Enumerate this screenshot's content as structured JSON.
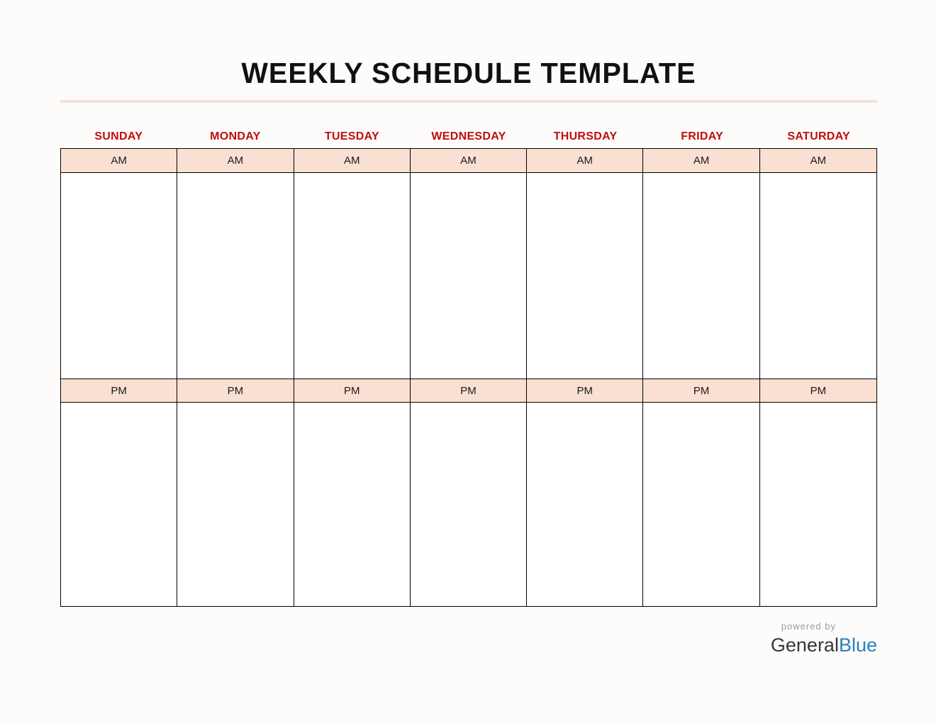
{
  "title": "WEEKLY SCHEDULE TEMPLATE",
  "days": [
    "SUNDAY",
    "MONDAY",
    "TUESDAY",
    "WEDNESDAY",
    "THURSDAY",
    "FRIDAY",
    "SATURDAY"
  ],
  "periods": {
    "am": "AM",
    "pm": "PM"
  },
  "footer": {
    "powered_by": "powered by",
    "brand_general": "General",
    "brand_blue": "Blue"
  },
  "colors": {
    "day_header_red": "#C10D0D",
    "period_row_peach": "#F9E0D2",
    "title_divider_peach": "#F6E0D2",
    "table_border": "#000000",
    "brand_blue": "#2880BF",
    "powered_by_gray": "#9A9A9A"
  }
}
